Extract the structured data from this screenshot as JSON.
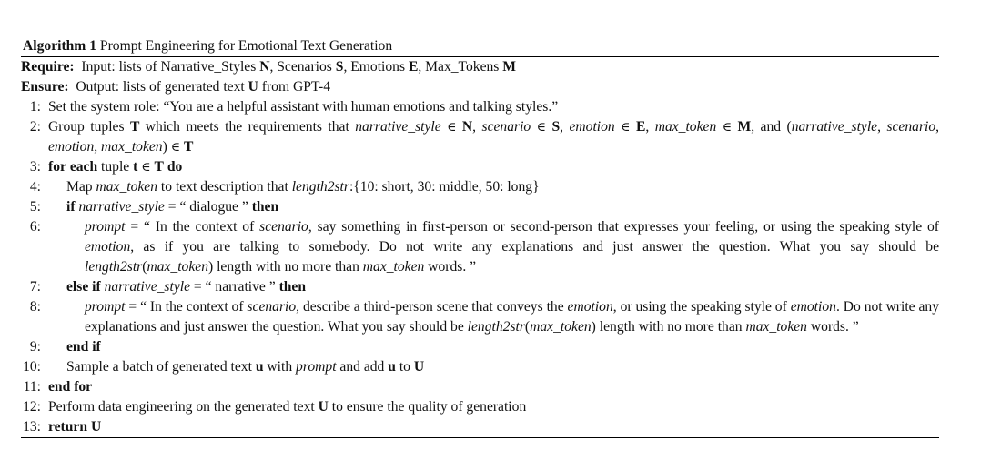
{
  "algorithm": {
    "label": "Algorithm 1",
    "title": "Prompt Engineering for Emotional Text Generation",
    "require_label": "Require:",
    "require_text": "Input: lists of Narrative_Styles N, Scenarios S, Emotions E, Max_Tokens M",
    "ensure_label": "Ensure:",
    "ensure_text": "Output: lists of generated text U from GPT-4",
    "lines": [
      {
        "num": "1:",
        "text": "Set the system role: “You are a helpful assistant with human emotions and talking styles.”"
      },
      {
        "num": "2:",
        "text": "Group tuples T which meets the requirements that narrative_style ∈ N, scenario ∈ S, emotion ∈ E, max_token ∈ M, and (narrative_style, scenario, emotion, max_token) ∈ T"
      },
      {
        "num": "3:",
        "text": "for each tuple t ∈ T do"
      },
      {
        "num": "4:",
        "text": "Map max_token to text description that length2str:{10: short, 30: middle, 50: long}"
      },
      {
        "num": "5:",
        "text": "if narrative_style = “ dialogue ” then"
      },
      {
        "num": "6:",
        "text": "prompt = “ In the context of scenario, say something in first-person or second-person that expresses your feeling, or using the speaking style of emotion, as if you are talking to somebody. Do not write any explanations and just answer the question. What you say should be length2str(max_token) length with no more than max_token words. ”"
      },
      {
        "num": "7:",
        "text": "else if narrative_style = “ narrative ” then"
      },
      {
        "num": "8:",
        "text": "prompt = “ In the context of scenario, describe a third-person scene that conveys the emotion, or using the speaking style of emotion. Do not write any explanations and just answer the question. What you say should be length2str(max_token) length with no more than max_token words. ”"
      },
      {
        "num": "9:",
        "text": "end if"
      },
      {
        "num": "10:",
        "text": "Sample a batch of generated text u with prompt and add u to U"
      },
      {
        "num": "11:",
        "text": "end for"
      },
      {
        "num": "12:",
        "text": "Perform data engineering on the generated text U to ensure the quality of generation"
      },
      {
        "num": "13:",
        "text": "return U"
      }
    ]
  }
}
